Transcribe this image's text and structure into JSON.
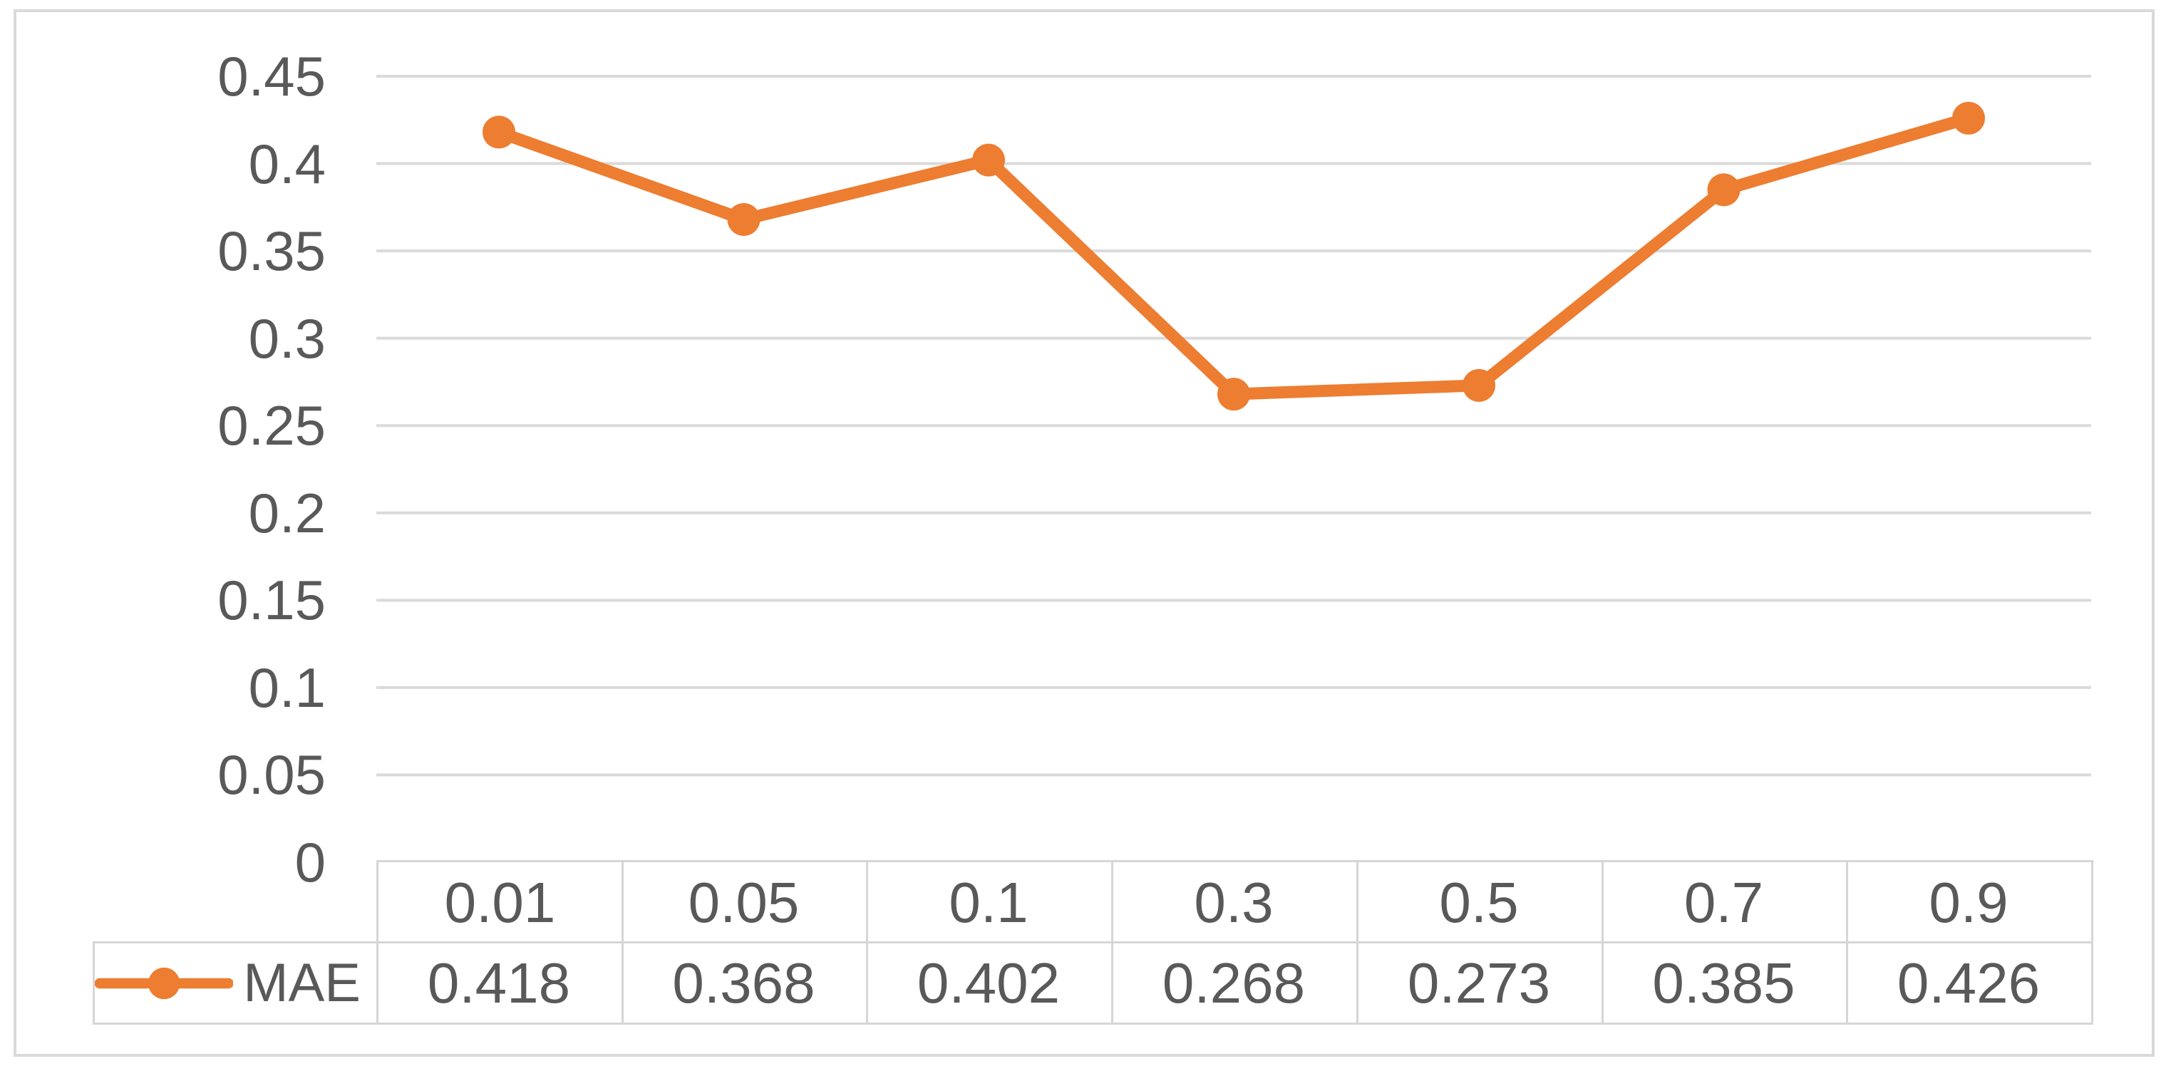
{
  "chart_data": {
    "type": "line",
    "categories": [
      "0.01",
      "0.05",
      "0.1",
      "0.3",
      "0.5",
      "0.7",
      "0.9"
    ],
    "series": [
      {
        "name": "MAE",
        "values": [
          0.418,
          0.368,
          0.402,
          0.268,
          0.273,
          0.385,
          0.426
        ]
      }
    ],
    "title": "",
    "xlabel": "",
    "ylabel": "",
    "ylim": [
      0,
      0.45
    ],
    "ytick_step": 0.05,
    "yticks": [
      "0.45",
      "0.4",
      "0.35",
      "0.3",
      "0.25",
      "0.2",
      "0.15",
      "0.1",
      "0.05",
      "0"
    ],
    "grid": true,
    "legend_position": "data-table-left",
    "marker": "circle",
    "colors": {
      "line": "#ED7D31",
      "gridline": "#DADADA",
      "table_border": "#D6D6D6",
      "text": "#595959",
      "frame_border": "#D9D9D9",
      "background": "#FFFFFF"
    }
  }
}
